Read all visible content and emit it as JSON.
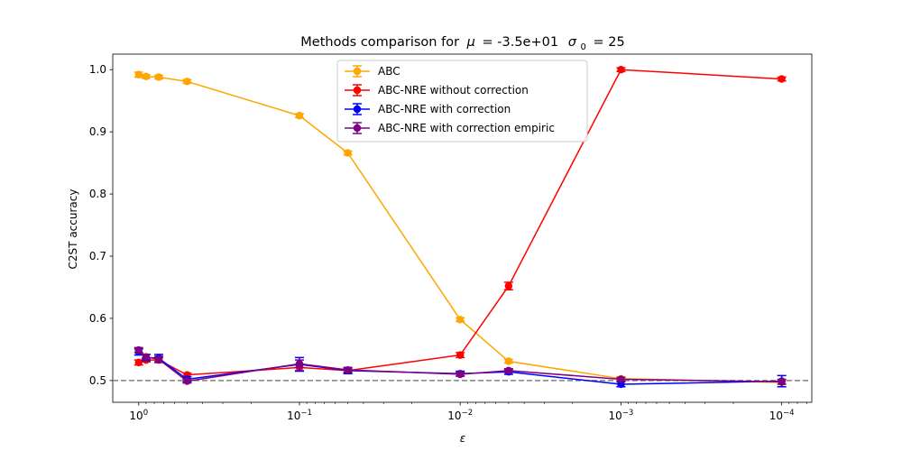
{
  "chart_data": {
    "type": "line",
    "title_prefix": "Methods comparison for",
    "title_mu_symbol": "μ",
    "title_mu_value": "= -3.5e+01",
    "title_sigma_symbol": "σ",
    "title_sigma_sub": "0",
    "title_sigma_value": "= 25",
    "xlabel": "ε",
    "ylabel": "C2ST accuracy",
    "xscale": "log",
    "x_inverted": true,
    "xlim": [
      1.45,
      6.5e-05
    ],
    "ylim": [
      0.465,
      1.025
    ],
    "x_ticks": [
      {
        "value": 1,
        "base": "10",
        "exp": "0"
      },
      {
        "value": 0.1,
        "base": "10",
        "exp": "−1"
      },
      {
        "value": 0.01,
        "base": "10",
        "exp": "−2"
      },
      {
        "value": 0.001,
        "base": "10",
        "exp": "−3"
      },
      {
        "value": 0.0001,
        "base": "10",
        "exp": "−4"
      }
    ],
    "y_ticks": [
      {
        "value": 0.5,
        "label": "0.5"
      },
      {
        "value": 0.6,
        "label": "0.6"
      },
      {
        "value": 0.7,
        "label": "0.7"
      },
      {
        "value": 0.8,
        "label": "0.8"
      },
      {
        "value": 0.9,
        "label": "0.9"
      },
      {
        "value": 1.0,
        "label": "1.0"
      }
    ],
    "reference_line": {
      "y": 0.5,
      "style": "dashed",
      "color": "#808080"
    },
    "legend_position": "upper-center",
    "x": [
      1.0,
      0.9,
      0.75,
      0.5,
      0.1,
      0.05,
      0.01,
      0.005,
      0.001,
      0.0001
    ],
    "series": [
      {
        "name": "ABC",
        "color": "#ffa500",
        "values": [
          0.992,
          0.989,
          0.988,
          0.981,
          0.926,
          0.866,
          0.598,
          0.531,
          0.503,
          0.497
        ],
        "errors": [
          0.004,
          0.003,
          0.003,
          0.003,
          0.003,
          0.003,
          0.003,
          0.003,
          0.003,
          0.003
        ]
      },
      {
        "name": "ABC-NRE without correction",
        "color": "#ff0000",
        "values": [
          0.529,
          0.533,
          0.533,
          0.509,
          0.521,
          0.516,
          0.541,
          0.652,
          1.0,
          0.985
        ],
        "errors": [
          0.004,
          0.003,
          0.004,
          0.003,
          0.005,
          0.003,
          0.004,
          0.006,
          0.003,
          0.003
        ]
      },
      {
        "name": "ABC-NRE with correction",
        "color": "#0000ff",
        "values": [
          0.546,
          0.537,
          0.536,
          0.502,
          0.526,
          0.516,
          0.511,
          0.514,
          0.494,
          0.499
        ],
        "errors": [
          0.005,
          0.005,
          0.006,
          0.004,
          0.011,
          0.005,
          0.004,
          0.004,
          0.004,
          0.009
        ]
      },
      {
        "name": "ABC-NRE with correction empiric",
        "color": "#800080",
        "values": [
          0.549,
          0.538,
          0.534,
          0.499,
          0.527,
          0.517,
          0.51,
          0.516,
          0.502,
          0.498
        ],
        "errors": [
          0.004,
          0.004,
          0.005,
          0.003,
          0.006,
          0.004,
          0.003,
          0.003,
          0.003,
          0.004
        ]
      }
    ]
  }
}
